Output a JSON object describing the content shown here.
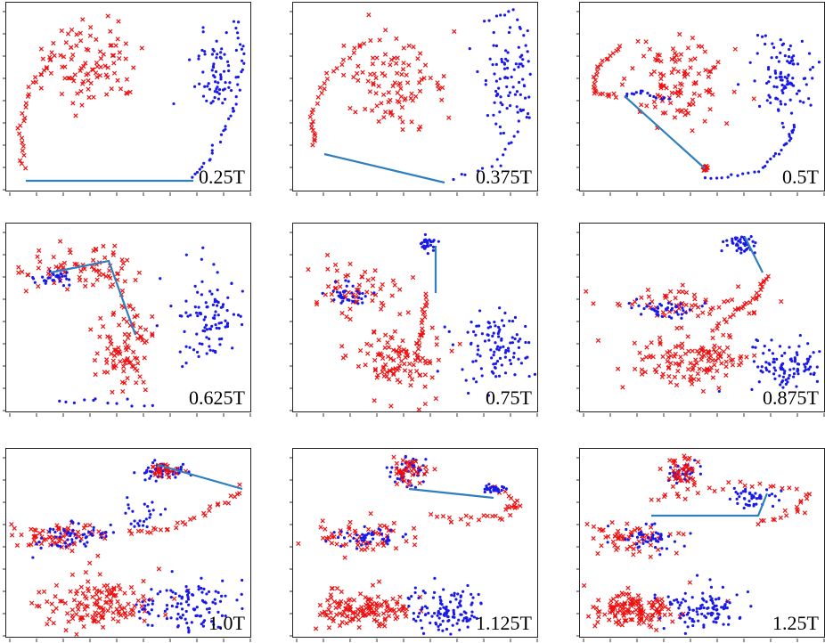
{
  "figure": {
    "colors": {
      "red_series": "#ee1111",
      "blue_series": "#1a1ae8",
      "connector": "#2f7fbf",
      "frame": "#222222"
    },
    "marker_shapes": {
      "red_series": "x-cross",
      "blue_series": "dot"
    }
  },
  "chart_data": [
    {
      "type": "scatter",
      "label": "0.25T",
      "grid": false
    },
    {
      "type": "scatter",
      "label": "0.375T",
      "grid": false
    },
    {
      "type": "scatter",
      "label": "0.5T",
      "grid": false
    },
    {
      "type": "scatter",
      "label": "0.625T",
      "grid": false
    },
    {
      "type": "scatter",
      "label": "0.75T",
      "grid": false
    },
    {
      "type": "scatter",
      "label": "0.875T",
      "grid": false
    },
    {
      "type": "scatter",
      "label": "1.0T",
      "grid": false
    },
    {
      "type": "scatter",
      "label": "1.125T",
      "grid": false
    },
    {
      "type": "scatter",
      "label": "1.25T",
      "grid": false
    }
  ]
}
